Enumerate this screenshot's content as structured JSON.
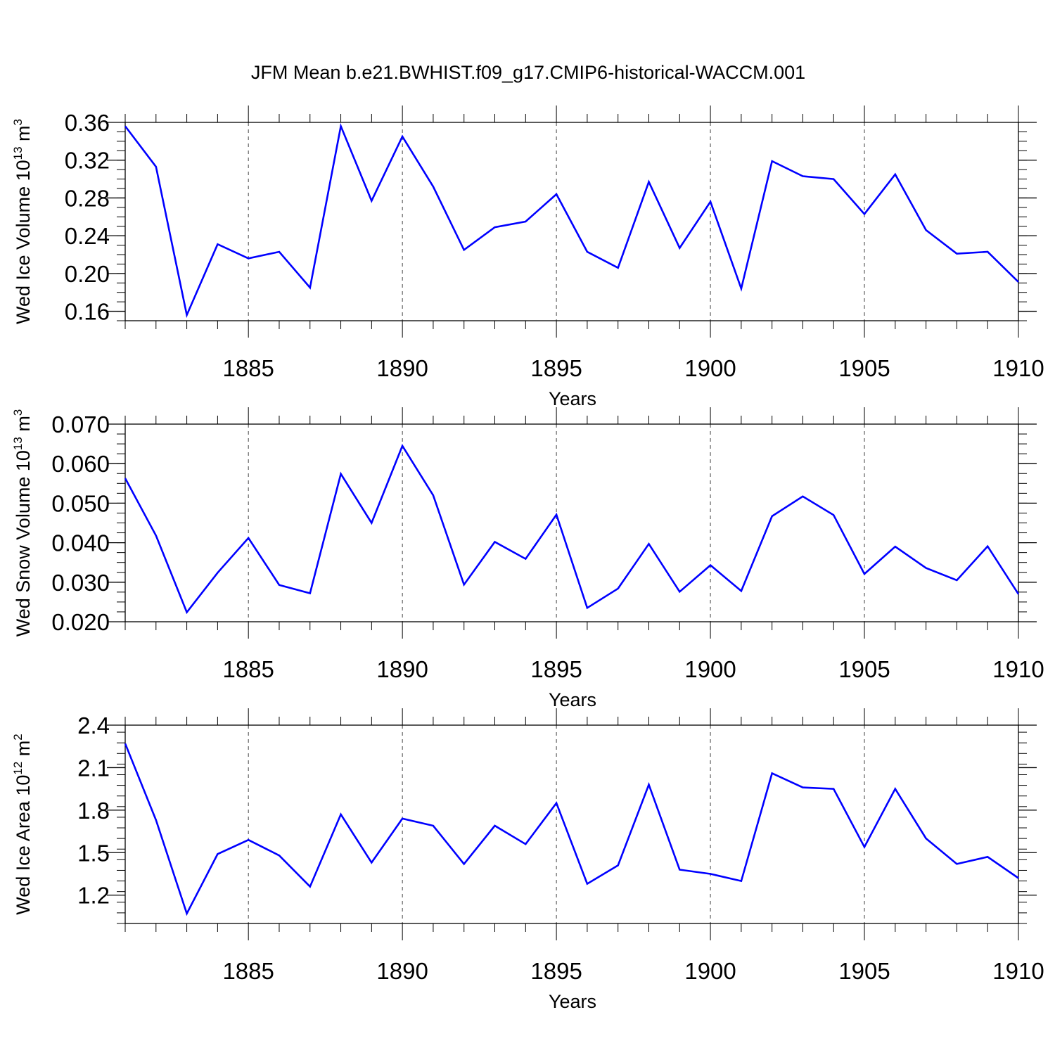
{
  "title": "JFM Mean b.e21.BWHIST.f09_g17.CMIP6-historical-WACCM.001",
  "colors": {
    "line": "#0000ff",
    "frame": "#000000",
    "grid": "#444444"
  },
  "chart_data": [
    {
      "type": "line",
      "ylabel": {
        "text": "Wed Ice Volume 10",
        "exp": "13",
        "unit": " m",
        "unit_exp": "3"
      },
      "xlabel": "Years",
      "xlim": [
        1881,
        1910
      ],
      "ylim": [
        0.15,
        0.36
      ],
      "yticks": [
        "0.16",
        "0.20",
        "0.24",
        "0.28",
        "0.32",
        "0.36"
      ],
      "xticks": [
        "1885",
        "1890",
        "1895",
        "1900",
        "1905",
        "1910"
      ],
      "grid": "vertical dashed at major x ticks",
      "x": [
        1881,
        1882,
        1883,
        1884,
        1885,
        1886,
        1887,
        1888,
        1889,
        1890,
        1891,
        1892,
        1893,
        1894,
        1895,
        1896,
        1897,
        1898,
        1899,
        1900,
        1901,
        1902,
        1903,
        1904,
        1905,
        1906,
        1907,
        1908,
        1909,
        1910
      ],
      "series": [
        {
          "values": [
            0.356,
            0.313,
            0.156,
            0.231,
            0.216,
            0.223,
            0.185,
            0.356,
            0.277,
            0.345,
            0.292,
            0.225,
            0.249,
            0.255,
            0.284,
            0.223,
            0.206,
            0.297,
            0.227,
            0.276,
            0.184,
            0.319,
            0.303,
            0.3,
            0.263,
            0.305,
            0.246,
            0.221,
            0.223,
            0.191
          ]
        }
      ]
    },
    {
      "type": "line",
      "ylabel": {
        "text": "Wed Snow Volume 10",
        "exp": "13",
        "unit": " m",
        "unit_exp": "3"
      },
      "xlabel": "Years",
      "xlim": [
        1881,
        1910
      ],
      "ylim": [
        0.02,
        0.07
      ],
      "yticks": [
        "0.020",
        "0.030",
        "0.040",
        "0.050",
        "0.060",
        "0.070"
      ],
      "xticks": [
        "1885",
        "1890",
        "1895",
        "1900",
        "1905",
        "1910"
      ],
      "grid": "vertical dashed at major x ticks",
      "x": [
        1881,
        1882,
        1883,
        1884,
        1885,
        1886,
        1887,
        1888,
        1889,
        1890,
        1891,
        1892,
        1893,
        1894,
        1895,
        1896,
        1897,
        1898,
        1899,
        1900,
        1901,
        1902,
        1903,
        1904,
        1905,
        1906,
        1907,
        1908,
        1909,
        1910
      ],
      "series": [
        {
          "values": [
            0.0563,
            0.0418,
            0.0224,
            0.0324,
            0.0412,
            0.0293,
            0.0272,
            0.0574,
            0.045,
            0.0645,
            0.052,
            0.0294,
            0.0402,
            0.0359,
            0.0471,
            0.0235,
            0.0284,
            0.0397,
            0.0276,
            0.0343,
            0.0278,
            0.0467,
            0.0517,
            0.047,
            0.0321,
            0.039,
            0.0336,
            0.0305,
            0.0391,
            0.027
          ]
        }
      ]
    },
    {
      "type": "line",
      "ylabel": {
        "text": "Wed Ice Area 10",
        "exp": "12",
        "unit": " m",
        "unit_exp": "2"
      },
      "xlabel": "Years",
      "xlim": [
        1881,
        1910
      ],
      "ylim": [
        1.0,
        2.4
      ],
      "yticks": [
        "1.2",
        "1.5",
        "1.8",
        "2.1",
        "2.4"
      ],
      "xticks": [
        "1885",
        "1890",
        "1895",
        "1900",
        "1905",
        "1910"
      ],
      "grid": "vertical dashed at major x ticks",
      "x": [
        1881,
        1882,
        1883,
        1884,
        1885,
        1886,
        1887,
        1888,
        1889,
        1890,
        1891,
        1892,
        1893,
        1894,
        1895,
        1896,
        1897,
        1898,
        1899,
        1900,
        1901,
        1902,
        1903,
        1904,
        1905,
        1906,
        1907,
        1908,
        1909,
        1910
      ],
      "series": [
        {
          "values": [
            2.27,
            1.73,
            1.07,
            1.49,
            1.59,
            1.48,
            1.26,
            1.77,
            1.43,
            1.74,
            1.69,
            1.42,
            1.69,
            1.56,
            1.85,
            1.28,
            1.41,
            1.98,
            1.38,
            1.35,
            1.3,
            2.06,
            1.96,
            1.95,
            1.54,
            1.95,
            1.6,
            1.42,
            1.47,
            1.32
          ]
        }
      ]
    }
  ]
}
